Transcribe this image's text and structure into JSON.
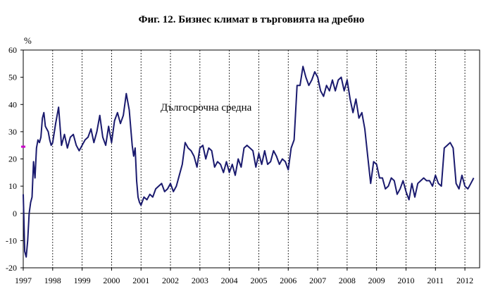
{
  "chart_data": {
    "type": "line",
    "title": "Фиг. 12. Бизнес климат в търговията на дребно",
    "ylabel": "%",
    "xlabel": "",
    "ylim": [
      -20,
      60
    ],
    "yticks": [
      60,
      50,
      40,
      30,
      20,
      10,
      0,
      -10,
      -20
    ],
    "xlim": [
      1997.0,
      2012.5
    ],
    "xticks": [
      "1997",
      "1998",
      "1999",
      "2000",
      "2001",
      "2002",
      "2003",
      "2004",
      "2005",
      "2006",
      "2007",
      "2008",
      "2009",
      "2010",
      "2011",
      "2012"
    ],
    "grid": "vertical",
    "line_color": "#1a1a6e",
    "average_marker": {
      "label": "Дългосрочна средна",
      "value": 24.5,
      "color": "#cc00cc"
    },
    "series": [
      {
        "x": [
          1997.0,
          1997.05,
          1997.1,
          1997.15,
          1997.2,
          1997.25,
          1997.3,
          1997.35,
          1997.4,
          1997.45,
          1997.5,
          1997.55,
          1997.6,
          1997.65,
          1997.7,
          1997.75,
          1997.8,
          1997.85,
          1997.9,
          1997.95,
          1998.0,
          1998.1,
          1998.2,
          1998.3,
          1998.4,
          1998.5,
          1998.6,
          1998.7,
          1998.8,
          1998.9,
          1999.0,
          1999.1,
          1999.2,
          1999.3,
          1999.4,
          1999.5,
          1999.6,
          1999.7,
          1999.8,
          1999.9,
          2000.0,
          2000.1,
          2000.2,
          2000.3,
          2000.4,
          2000.5,
          2000.6,
          2000.7,
          2000.75,
          2000.8,
          2000.85,
          2000.9,
          2000.95,
          2001.0,
          2001.1,
          2001.2,
          2001.3,
          2001.4,
          2001.5,
          2001.6,
          2001.7,
          2001.8,
          2001.9,
          2002.0,
          2002.1,
          2002.2,
          2002.3,
          2002.4,
          2002.5,
          2002.6,
          2002.7,
          2002.8,
          2002.9,
          2003.0,
          2003.1,
          2003.2,
          2003.3,
          2003.4,
          2003.5,
          2003.6,
          2003.7,
          2003.8,
          2003.9,
          2004.0,
          2004.1,
          2004.2,
          2004.3,
          2004.4,
          2004.5,
          2004.6,
          2004.7,
          2004.8,
          2004.9,
          2005.0,
          2005.1,
          2005.2,
          2005.3,
          2005.4,
          2005.5,
          2005.6,
          2005.7,
          2005.8,
          2005.9,
          2006.0,
          2006.1,
          2006.2,
          2006.3,
          2006.4,
          2006.5,
          2006.6,
          2006.7,
          2006.8,
          2006.9,
          2007.0,
          2007.1,
          2007.2,
          2007.3,
          2007.4,
          2007.5,
          2007.6,
          2007.7,
          2007.8,
          2007.9,
          2008.0,
          2008.1,
          2008.2,
          2008.3,
          2008.4,
          2008.5,
          2008.6,
          2008.7,
          2008.8,
          2008.9,
          2009.0,
          2009.1,
          2009.2,
          2009.3,
          2009.4,
          2009.5,
          2009.6,
          2009.7,
          2009.8,
          2009.9,
          2010.0,
          2010.1,
          2010.2,
          2010.3,
          2010.4,
          2010.5,
          2010.6,
          2010.7,
          2010.8,
          2010.9,
          2011.0,
          2011.1,
          2011.2,
          2011.3,
          2011.4,
          2011.5,
          2011.6,
          2011.7,
          2011.8,
          2011.9,
          2012.0,
          2012.1,
          2012.2,
          2012.3
        ],
        "values": [
          7,
          -14,
          -16,
          -10,
          0,
          4,
          6,
          19,
          13,
          24,
          27,
          26,
          28,
          35,
          37,
          32,
          31,
          30,
          27,
          25,
          26,
          33,
          39,
          25,
          29,
          24,
          28,
          29,
          25,
          23,
          25,
          27,
          28,
          31,
          26,
          30,
          36,
          28,
          25,
          32,
          26,
          34,
          37,
          33,
          36,
          44,
          38,
          25,
          21,
          24,
          12,
          6,
          4,
          3,
          6,
          5,
          7,
          6,
          9,
          10,
          11,
          8,
          9,
          11,
          8,
          10,
          14,
          18,
          26,
          24,
          23,
          21,
          17,
          24,
          25,
          20,
          24,
          23,
          17,
          19,
          18,
          15,
          19,
          15,
          18,
          14,
          20,
          17,
          24,
          25,
          24,
          23,
          17,
          22,
          18,
          23,
          18,
          19,
          23,
          21,
          18,
          20,
          19,
          16,
          24,
          27,
          47,
          47,
          54,
          50,
          47,
          49,
          52,
          50,
          45,
          43,
          47,
          45,
          49,
          45,
          49,
          50,
          45,
          49,
          42,
          37,
          42,
          35,
          37,
          31,
          21,
          11,
          19,
          18,
          13,
          13,
          9,
          10,
          13,
          12,
          7,
          9,
          12,
          8,
          5,
          11,
          6,
          11,
          12,
          13,
          12,
          12,
          10,
          14,
          11,
          10,
          24,
          25,
          26,
          24,
          11,
          9,
          14,
          10,
          9,
          11,
          13
        ]
      }
    ]
  }
}
